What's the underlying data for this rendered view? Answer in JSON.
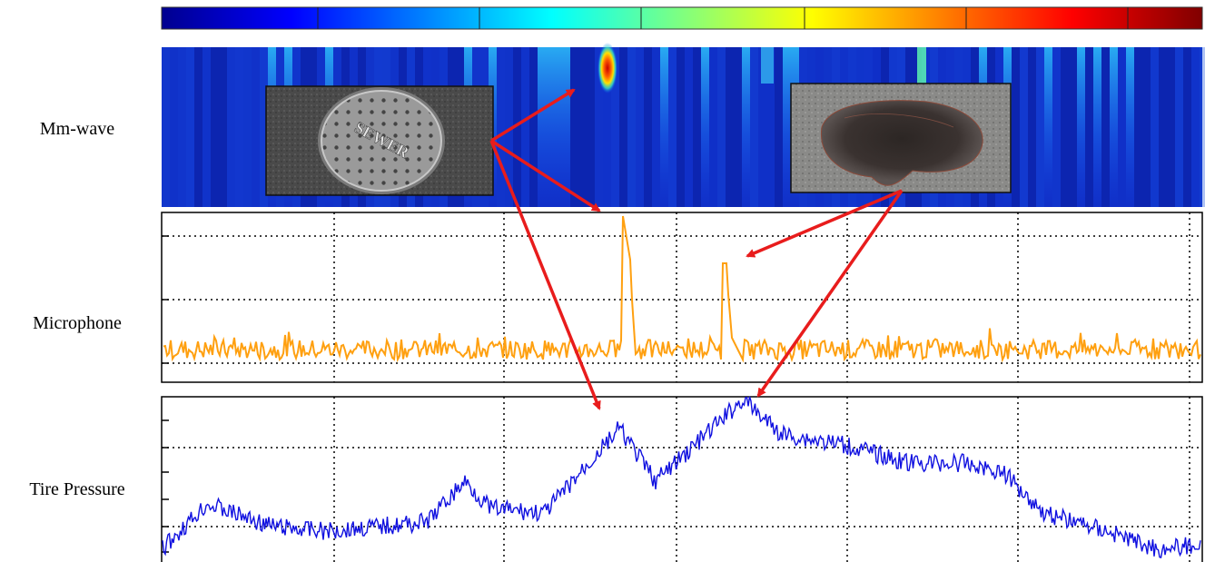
{
  "labels": {
    "mmwave": "Mm-wave",
    "microphone": "Microphone",
    "tire": "Tire Pressure"
  },
  "photos": {
    "manhole": {
      "icon": "manhole-cover-photo",
      "text": "SEWER"
    },
    "pothole": {
      "icon": "pothole-photo"
    }
  },
  "colors": {
    "microphone_line": "#FFA010",
    "tire_line": "#1010E0",
    "arrow": "#E81C1C",
    "heatmap_bg": "#1030C8"
  },
  "colorbar": {
    "colormap": "jet"
  },
  "mmwave_heatmap": {
    "hotspots": [
      {
        "column": 0.44,
        "level": 0.95
      },
      {
        "column": 0.74,
        "level": 0.45
      }
    ]
  }
}
